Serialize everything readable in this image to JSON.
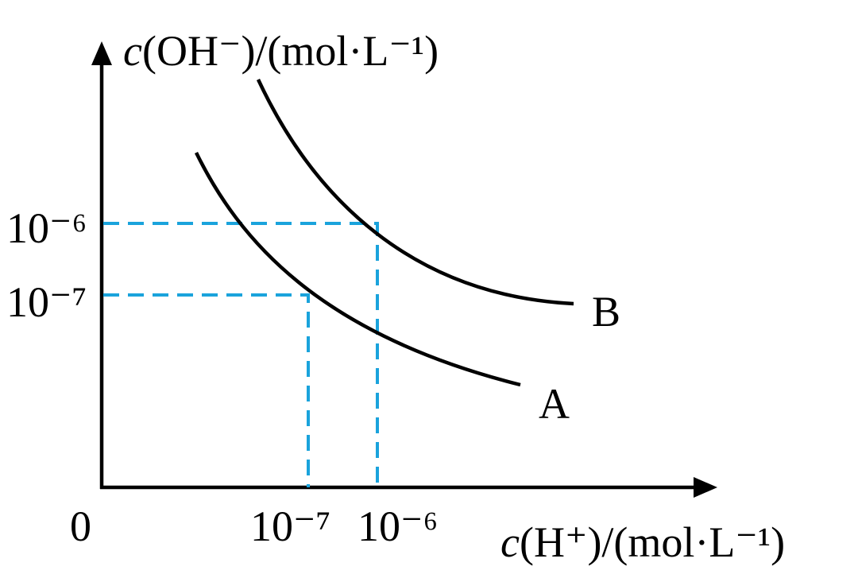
{
  "axes": {
    "y": {
      "variable": "c",
      "unit": "(OH⁻)/(mol·L⁻¹)",
      "ticks": [
        "10⁻⁶",
        "10⁻⁷"
      ]
    },
    "x": {
      "variable": "c",
      "unit": "(H⁺)/(mol·L⁻¹)",
      "ticks": [
        "10⁻⁷",
        "10⁻⁶"
      ]
    },
    "origin": "0"
  },
  "curves": [
    {
      "label": "A"
    },
    {
      "label": "B"
    }
  ]
}
